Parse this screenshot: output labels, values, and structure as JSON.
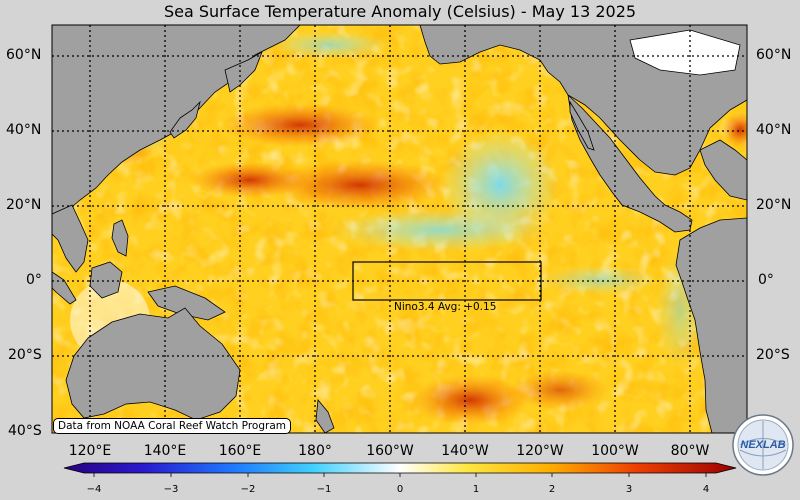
{
  "title": "Sea Surface Temperature Anomaly (Celsius) - May 13 2025",
  "lat_labels": [
    "60°N",
    "40°N",
    "20°N",
    "0°",
    "20°S",
    "40°S"
  ],
  "lon_labels": [
    "120°E",
    "140°E",
    "160°E",
    "180°",
    "160°W",
    "140°W",
    "120°W",
    "100°W",
    "80°W"
  ],
  "nino_label": "Nino3.4 Avg: +0.15",
  "credit": "Data from NOAA Coral Reef Watch Program",
  "colorbar": {
    "ticks": [
      "−4",
      "−3",
      "−2",
      "−1",
      "0",
      "1",
      "2",
      "3",
      "4"
    ],
    "min": -4,
    "max": 4
  },
  "logo_text": "NEXLAB",
  "colors": {
    "land": "#a0a0a0",
    "background": "#d4d4d4",
    "warm": "#ffc400",
    "hot": "#d02000",
    "cool": "#60d8ff"
  }
}
